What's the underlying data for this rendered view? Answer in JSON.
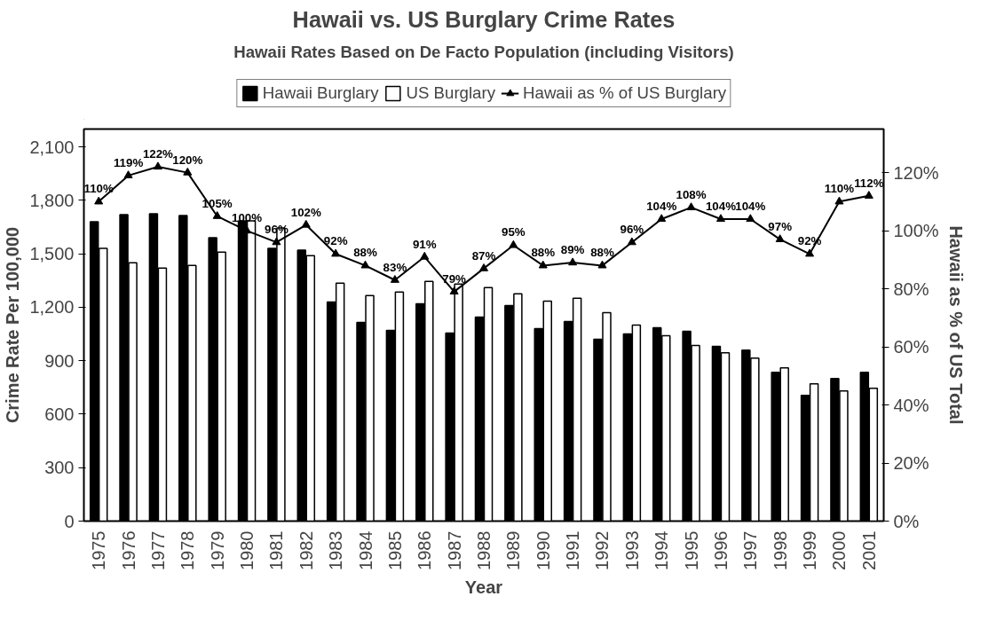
{
  "chart_data": {
    "type": "bar",
    "title": "Hawaii vs. US Burglary Crime Rates",
    "subtitle": "Hawaii Rates Based on De Facto Population (including Visitors)",
    "xlabel": "Year",
    "ylabel": "Crime Rate Per 100,000",
    "y2label": "Hawaii as % of US Total",
    "categories": [
      "1975",
      "1976",
      "1977",
      "1978",
      "1979",
      "1980",
      "1981",
      "1982",
      "1983",
      "1984",
      "1985",
      "1986",
      "1987",
      "1988",
      "1989",
      "1990",
      "1991",
      "1992",
      "1993",
      "1994",
      "1995",
      "1996",
      "1997",
      "1998",
      "1999",
      "2000",
      "2001"
    ],
    "series": [
      {
        "name": "Hawaii Burglary",
        "color": "#000000",
        "values": [
          1680,
          1720,
          1725,
          1715,
          1590,
          1685,
          1530,
          1520,
          1230,
          1115,
          1070,
          1220,
          1055,
          1145,
          1210,
          1080,
          1120,
          1020,
          1050,
          1085,
          1065,
          980,
          960,
          835,
          705,
          800,
          835
        ]
      },
      {
        "name": "US Burglary",
        "color": "#ffffff",
        "values": [
          1530,
          1450,
          1420,
          1435,
          1510,
          1685,
          1645,
          1490,
          1335,
          1265,
          1285,
          1345,
          1330,
          1310,
          1275,
          1235,
          1250,
          1170,
          1100,
          1040,
          985,
          945,
          915,
          860,
          770,
          730,
          745
        ]
      },
      {
        "name": "Hawaii as % of US Burglary",
        "type": "line",
        "axis": "y2",
        "color": "#000000",
        "marker": "triangle",
        "values": [
          110,
          119,
          122,
          120,
          105,
          100,
          96,
          102,
          92,
          88,
          83,
          91,
          79,
          87,
          95,
          88,
          89,
          88,
          96,
          104,
          108,
          104,
          104,
          97,
          92,
          110,
          112
        ],
        "value_labels": [
          "110%",
          "119%",
          "122%",
          "120%",
          "105%",
          "100%",
          "96%",
          "102%",
          "92%",
          "88%",
          "83%",
          "91%",
          "79%",
          "87%",
          "95%",
          "88%",
          "89%",
          "88%",
          "96%",
          "104%",
          "108%",
          "104%",
          "104%",
          "97%",
          "92%",
          "110%",
          "112%"
        ]
      }
    ],
    "ylim": [
      0,
      2200
    ],
    "yticks": [
      {
        "value": 0,
        "label": "0"
      },
      {
        "value": 300,
        "label": "300"
      },
      {
        "value": 600,
        "label": "600"
      },
      {
        "value": 900,
        "label": "900"
      },
      {
        "value": 1200,
        "label": "1,200"
      },
      {
        "value": 1500,
        "label": "1,500"
      },
      {
        "value": 1800,
        "label": "1,800"
      },
      {
        "value": 2100,
        "label": "2,100"
      }
    ],
    "y2lim": [
      0,
      135
    ],
    "y2ticks": [
      {
        "value": 0,
        "label": "0%"
      },
      {
        "value": 20,
        "label": "20%"
      },
      {
        "value": 40,
        "label": "40%"
      },
      {
        "value": 60,
        "label": "60%"
      },
      {
        "value": 80,
        "label": "80%"
      },
      {
        "value": 100,
        "label": "100%"
      },
      {
        "value": 120,
        "label": "120%"
      }
    ],
    "grid": false,
    "legend": "top"
  }
}
